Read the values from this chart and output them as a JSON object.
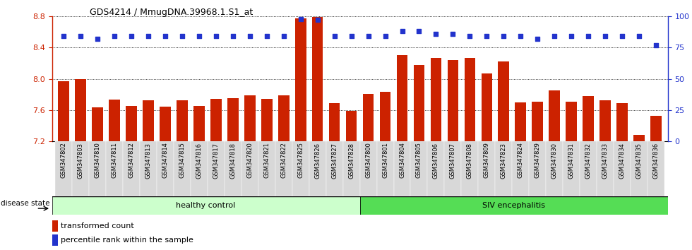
{
  "title": "GDS4214 / MmugDNA.39968.1.S1_at",
  "categories": [
    "GSM347802",
    "GSM347803",
    "GSM347810",
    "GSM347811",
    "GSM347812",
    "GSM347813",
    "GSM347814",
    "GSM347815",
    "GSM347816",
    "GSM347817",
    "GSM347818",
    "GSM347820",
    "GSM347821",
    "GSM347822",
    "GSM347825",
    "GSM347826",
    "GSM347827",
    "GSM347828",
    "GSM347800",
    "GSM347801",
    "GSM347804",
    "GSM347805",
    "GSM347806",
    "GSM347807",
    "GSM347808",
    "GSM347809",
    "GSM347823",
    "GSM347824",
    "GSM347829",
    "GSM347830",
    "GSM347831",
    "GSM347832",
    "GSM347833",
    "GSM347834",
    "GSM347835",
    "GSM347836"
  ],
  "bar_values": [
    7.97,
    8.0,
    7.63,
    7.73,
    7.65,
    7.72,
    7.64,
    7.72,
    7.65,
    7.74,
    7.75,
    7.79,
    7.74,
    7.79,
    8.77,
    8.79,
    7.69,
    7.59,
    7.81,
    7.83,
    8.3,
    8.18,
    8.27,
    8.24,
    8.27,
    8.07,
    8.22,
    7.7,
    7.71,
    7.85,
    7.71,
    7.78,
    7.72,
    7.69,
    7.28,
    7.53
  ],
  "percentile_values": [
    84,
    84,
    82,
    84,
    84,
    84,
    84,
    84,
    84,
    84,
    84,
    84,
    84,
    84,
    98,
    97,
    84,
    84,
    84,
    84,
    88,
    88,
    86,
    86,
    84,
    84,
    84,
    84,
    82,
    84,
    84,
    84,
    84,
    84,
    84,
    77
  ],
  "bar_color": "#cc2200",
  "dot_color": "#2233cc",
  "ylim_left": [
    7.2,
    8.8
  ],
  "ylim_right": [
    0,
    100
  ],
  "yticks_left": [
    7.2,
    7.6,
    8.0,
    8.4,
    8.8
  ],
  "yticks_right": [
    0,
    25,
    50,
    75,
    100
  ],
  "group1_label": "healthy control",
  "group1_count": 18,
  "group2_label": "SIV encephalitis",
  "group2_count": 18,
  "group1_color": "#ccffcc",
  "group2_color": "#55dd55",
  "legend_bar_label": "transformed count",
  "legend_dot_label": "percentile rank within the sample",
  "disease_state_label": "disease state",
  "background_color": "#ffffff",
  "tick_bg_color": "#d8d8d8"
}
